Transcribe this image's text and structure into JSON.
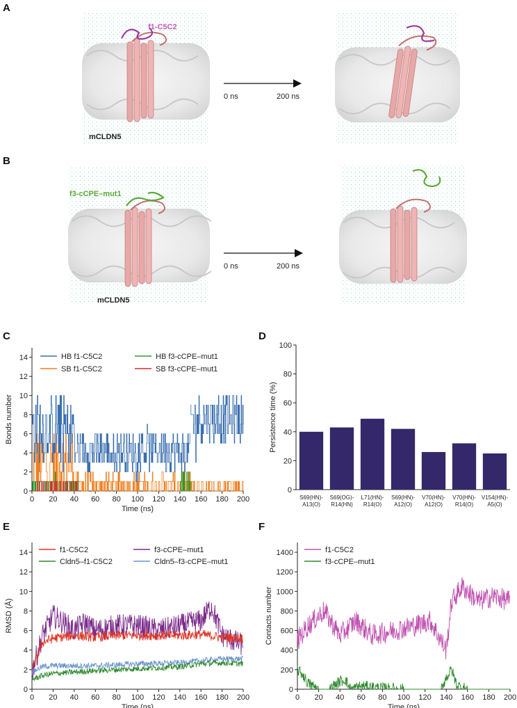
{
  "panels": {
    "A": {
      "label": "A",
      "ligand_label": "f1-C5C2",
      "receptor_label": "mCLDN5",
      "time_start": "0 ns",
      "time_end": "200 ns",
      "ligand_color": "#c65ab4"
    },
    "B": {
      "label": "B",
      "ligand_label": "f3-cCPE–mut1",
      "receptor_label": "mCLDN5",
      "time_start": "0 ns",
      "time_end": "200 ns",
      "ligand_color": "#5aaa3a"
    },
    "C": {
      "label": "C"
    },
    "D": {
      "label": "D"
    },
    "E": {
      "label": "E"
    },
    "F": {
      "label": "F"
    }
  },
  "chart_data": [
    {
      "id": "C",
      "type": "line",
      "xlabel": "Time (ns)",
      "ylabel": "Bonds number",
      "xlim": [
        0,
        200
      ],
      "ylim": [
        0,
        15
      ],
      "xticks": [
        "0",
        "20",
        "40",
        "60",
        "80",
        "100",
        "120",
        "140",
        "160",
        "180",
        "200"
      ],
      "yticks": [
        "0",
        "2",
        "4",
        "6",
        "8",
        "10",
        "12",
        "14"
      ],
      "legend": [
        {
          "name": "HB f1-C5C2",
          "color": "#3a6fb0"
        },
        {
          "name": "SB f1-C5C2",
          "color": "#f07f1f"
        },
        {
          "name": "HB f3-cCPE–mut1",
          "color": "#2f9a2f"
        },
        {
          "name": "SB f3-cCPE–mut1",
          "color": "#d62b2b"
        }
      ],
      "segments": [
        {
          "series": "HB f1-C5C2",
          "x": [
            0,
            40
          ],
          "mean": 6.5,
          "amp": 3.5
        },
        {
          "series": "HB f1-C5C2",
          "x": [
            40,
            150
          ],
          "mean": 4.2,
          "amp": 2.0
        },
        {
          "series": "HB f1-C5C2",
          "x": [
            150,
            200
          ],
          "mean": 7.5,
          "amp": 2.5
        },
        {
          "series": "SB f1-C5C2",
          "x": [
            0,
            40
          ],
          "mean": 3.0,
          "amp": 3.5
        },
        {
          "series": "SB f1-C5C2",
          "x": [
            40,
            150
          ],
          "mean": 0.6,
          "amp": 1.2
        },
        {
          "series": "SB f1-C5C2",
          "x": [
            150,
            200
          ],
          "mean": 0.4,
          "amp": 1.0
        },
        {
          "series": "HB f3-cCPE–mut1",
          "x": [
            0,
            45
          ],
          "mean": 0.4,
          "amp": 1.0
        },
        {
          "series": "HB f3-cCPE–mut1",
          "x": [
            140,
            150
          ],
          "mean": 0.8,
          "amp": 1.0
        },
        {
          "series": "SB f3-cCPE–mut1",
          "x": [
            0,
            45
          ],
          "mean": 0.2,
          "amp": 0.6
        }
      ]
    },
    {
      "id": "D",
      "type": "bar",
      "ylabel": "Persistence time (%)",
      "ylim": [
        0,
        100
      ],
      "yticks": [
        "0",
        "20",
        "40",
        "60",
        "80",
        "100"
      ],
      "bar_color": "#34286b",
      "categories": [
        [
          "S69(HN)-",
          "A13(O)"
        ],
        [
          "S69(OG)-",
          "R14(HN)"
        ],
        [
          "L71(HN)-",
          "R14(O)"
        ],
        [
          "S69(HN)-",
          "A12(O)"
        ],
        [
          "V70(HN)-",
          "A12(O)"
        ],
        [
          "V70(HN)-",
          "R14(O)"
        ],
        [
          "V154(HN)-",
          "A5(O)"
        ]
      ],
      "values": [
        40,
        43,
        49,
        42,
        26,
        32,
        25
      ]
    },
    {
      "id": "E",
      "type": "line",
      "xlabel": "Time (ns)",
      "ylabel": "RMSD (Å)",
      "xlim": [
        0,
        200
      ],
      "ylim": [
        0,
        15
      ],
      "xticks": [
        "0",
        "20",
        "40",
        "60",
        "80",
        "100",
        "120",
        "140",
        "160",
        "180",
        "200"
      ],
      "yticks": [
        "0",
        "2",
        "4",
        "6",
        "8",
        "10",
        "12",
        "14"
      ],
      "legend": [
        {
          "name": "f1-C5C2",
          "color": "#e03424"
        },
        {
          "name": "Cldn5–f1-C5C2",
          "color": "#2e8a2e"
        },
        {
          "name": "f3-cCPE–mut1",
          "color": "#7a2a8a"
        },
        {
          "name": "Cldn5–f3-cCPE–mut1",
          "color": "#6a93cc"
        }
      ],
      "series": [
        {
          "name": "f3-cCPE–mut1",
          "x": [
            0,
            10,
            20,
            30,
            40,
            50,
            60,
            80,
            100,
            120,
            140,
            160,
            170,
            180,
            200
          ],
          "y": [
            1.8,
            5.5,
            7.5,
            6.8,
            6.0,
            6.8,
            6.0,
            6.5,
            6.5,
            6.0,
            6.5,
            7.0,
            8.5,
            5.5,
            4.5
          ],
          "noise": 1.2
        },
        {
          "name": "f1-C5C2",
          "x": [
            0,
            10,
            20,
            40,
            60,
            80,
            100,
            120,
            140,
            160,
            180,
            200
          ],
          "y": [
            2.0,
            4.8,
            5.2,
            5.5,
            5.3,
            5.5,
            5.5,
            5.5,
            5.5,
            5.6,
            5.3,
            5.2
          ],
          "noise": 0.5
        },
        {
          "name": "Cldn5–f3-cCPE–mut1",
          "x": [
            0,
            10,
            20,
            60,
            100,
            140,
            160,
            180,
            200
          ],
          "y": [
            1.8,
            2.3,
            2.4,
            2.4,
            2.6,
            2.7,
            2.9,
            3.1,
            3.1
          ],
          "noise": 0.3
        },
        {
          "name": "Cldn5–f1-C5C2",
          "x": [
            0,
            10,
            20,
            60,
            100,
            140,
            160,
            180,
            200
          ],
          "y": [
            1.0,
            1.4,
            1.6,
            1.9,
            2.1,
            2.3,
            2.6,
            2.7,
            2.6
          ],
          "noise": 0.3
        }
      ]
    },
    {
      "id": "F",
      "type": "line",
      "xlabel": "Time (ns)",
      "ylabel": "Contacts number",
      "xlim": [
        0,
        200
      ],
      "ylim": [
        0,
        1500
      ],
      "xticks": [
        "0",
        "20",
        "40",
        "60",
        "80",
        "100",
        "120",
        "140",
        "160",
        "180",
        "200"
      ],
      "yticks": [
        "0",
        "200",
        "400",
        "600",
        "800",
        "1000",
        "1200",
        "1400"
      ],
      "legend": [
        {
          "name": "f1-C5C2",
          "color": "#c050b0"
        },
        {
          "name": "f3-cCPE–mut1",
          "color": "#2e8a2e"
        }
      ],
      "series": [
        {
          "name": "f1-C5C2",
          "x": [
            0,
            10,
            25,
            40,
            55,
            70,
            90,
            110,
            125,
            135,
            140,
            145,
            155,
            170,
            185,
            200
          ],
          "y": [
            500,
            650,
            800,
            550,
            700,
            550,
            600,
            650,
            700,
            500,
            400,
            900,
            1050,
            900,
            950,
            900
          ],
          "noise": 110
        },
        {
          "name": "f3-cCPE–mut1",
          "x": [
            0,
            5,
            10,
            20,
            30,
            40,
            45,
            50,
            60,
            80,
            100,
            120,
            135,
            140,
            145,
            150,
            160,
            180,
            200
          ],
          "y": [
            200,
            150,
            60,
            0,
            0,
            80,
            100,
            0,
            30,
            10,
            0,
            0,
            0,
            120,
            200,
            40,
            0,
            0,
            0
          ],
          "noise": 60
        }
      ]
    }
  ]
}
